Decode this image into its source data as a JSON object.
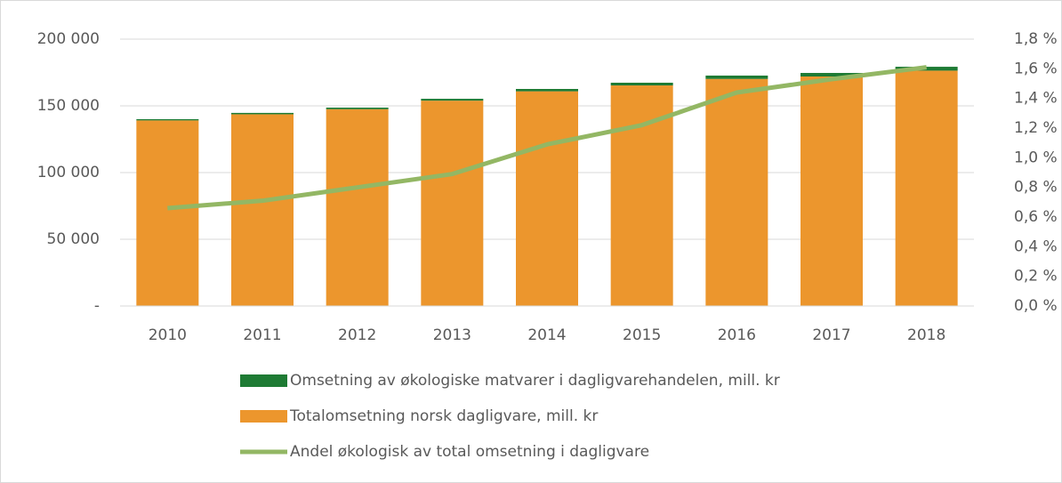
{
  "chart_data": {
    "type": "bar",
    "stacked": true,
    "categories": [
      "2010",
      "2011",
      "2012",
      "2013",
      "2014",
      "2015",
      "2016",
      "2017",
      "2018"
    ],
    "series": [
      {
        "name": "Omsetning av økologiske matvarer i dagligvarehandelen, mill. kr",
        "color": "#1e7b34",
        "type": "bar",
        "values": [
          920,
          1020,
          1190,
          1380,
          1770,
          2040,
          2490,
          2670,
          2890
        ]
      },
      {
        "name": "Totalomsetning norsk dagligvare, mill. kr",
        "color": "#ec962d",
        "type": "bar",
        "values": [
          139100,
          143700,
          147500,
          153900,
          160900,
          165300,
          170200,
          172000,
          176400
        ]
      },
      {
        "name": "Andel økologisk av total omsetning i dagligvare",
        "color": "#93b764",
        "type": "line",
        "axis": "y2",
        "values": [
          0.66,
          0.71,
          0.8,
          0.89,
          1.09,
          1.22,
          1.44,
          1.53,
          1.61
        ]
      }
    ],
    "ylim": [
      0,
      200000
    ],
    "yticks": [
      {
        "value": 0,
        "label": "-"
      },
      {
        "value": 50000,
        "label": "50 000"
      },
      {
        "value": 100000,
        "label": "100 000"
      },
      {
        "value": 150000,
        "label": "150 000"
      },
      {
        "value": 200000,
        "label": "200 000"
      }
    ],
    "y2lim": [
      0,
      1.8
    ],
    "y2ticks": [
      {
        "value": 0,
        "label": "0,0 %"
      },
      {
        "value": 0.2,
        "label": "0,2 %"
      },
      {
        "value": 0.4,
        "label": "0,4 %"
      },
      {
        "value": 0.6,
        "label": "0,6 %"
      },
      {
        "value": 0.8,
        "label": "0,8 %"
      },
      {
        "value": 1.0,
        "label": "1,0 %"
      },
      {
        "value": 1.2,
        "label": "1,2 %"
      },
      {
        "value": 1.4,
        "label": "1,4 %"
      },
      {
        "value": 1.6,
        "label": "1,6 %"
      },
      {
        "value": 1.8,
        "label": "1,8 %"
      }
    ],
    "grid": true,
    "legend": "bottom"
  }
}
